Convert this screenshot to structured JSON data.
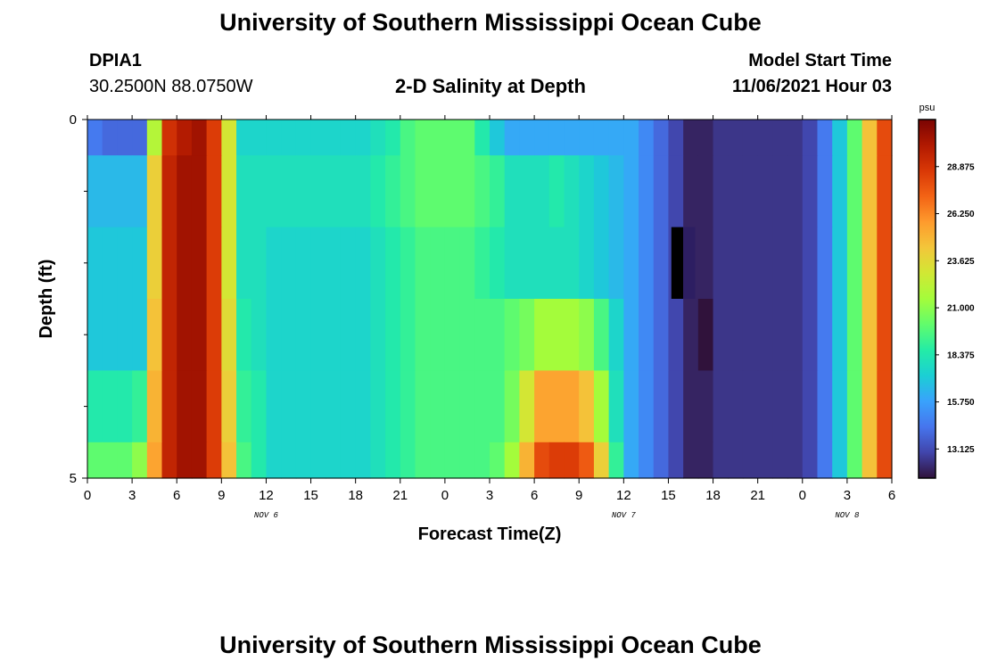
{
  "page": {
    "title": "University of Southern Mississippi Ocean Cube",
    "title_repeat": "University of Southern Mississippi Ocean Cube",
    "station_id": "DPIA1",
    "station_coords": "30.2500N  88.0750W",
    "subtitle": "2-D Salinity at Depth",
    "model_start_label": "Model Start Time",
    "model_start_value": "11/06/2021 Hour 03"
  },
  "chart_data": {
    "type": "heatmap",
    "title": "2-D Salinity at Depth",
    "xlabel": "Forecast Time(Z)",
    "ylabel": "Depth (ft)",
    "x_tick_labels": [
      "0",
      "3",
      "6",
      "9",
      "12",
      "15",
      "18",
      "21",
      "0",
      "3",
      "6",
      "9",
      "12",
      "15",
      "18",
      "21",
      "0",
      "3",
      "6"
    ],
    "date_labels": [
      {
        "text": "NOV 6",
        "tick_index": 4
      },
      {
        "text": "NOV 7",
        "tick_index": 12
      },
      {
        "text": "NOV 8",
        "tick_index": 17
      }
    ],
    "x_range_hours": [
      0,
      54
    ],
    "y_tick_labels": [
      "0",
      "5"
    ],
    "ylim": [
      0,
      5
    ],
    "colorbar": {
      "unit": "psu",
      "min": 11.5,
      "max": 31.5,
      "tick_values": [
        13.125,
        15.75,
        18.375,
        21.0,
        23.625,
        26.25,
        28.875
      ],
      "tick_labels": [
        "13.125",
        "15.750",
        "18.375",
        "21.000",
        "23.625",
        "26.250",
        "28.875"
      ]
    },
    "color_scale": [
      "#30123b",
      "#4145ab",
      "#4675ed",
      "#39a2fc",
      "#1bcfd4",
      "#24eca6",
      "#61fc6c",
      "#a4fc3b",
      "#d1e834",
      "#f3c63a",
      "#fe9b2d",
      "#f36315",
      "#d93806",
      "#b11901",
      "#7a0402"
    ],
    "time_hours": [
      0,
      1,
      2,
      3,
      4,
      5,
      6,
      7,
      8,
      9,
      10,
      11,
      12,
      13,
      14,
      15,
      16,
      17,
      18,
      19,
      20,
      21,
      22,
      23,
      24,
      25,
      26,
      27,
      28,
      29,
      30,
      31,
      32,
      33,
      34,
      35,
      36,
      37,
      38,
      39,
      40,
      41,
      42,
      43,
      44,
      45,
      46,
      47,
      48,
      49,
      50,
      51,
      52,
      53
    ],
    "depth_bins_ft": [
      "0.0-0.5",
      "0.5-1.5",
      "1.5-2.5",
      "2.5-3.5",
      "3.5-4.5",
      "4.5-5.0"
    ],
    "salinity_psu": [
      [
        14.5,
        14.0,
        14.0,
        14.0,
        22.0,
        29.0,
        30.0,
        30.5,
        28.5,
        23.0,
        17.5,
        17.5,
        17.5,
        17.5,
        17.5,
        17.5,
        17.5,
        17.5,
        17.5,
        18.0,
        18.5,
        19.5,
        20.0,
        20.0,
        20.0,
        20.0,
        18.5,
        17.0,
        16.0,
        16.0,
        16.0,
        16.0,
        16.0,
        16.0,
        16.0,
        16.0,
        16.0,
        15.0,
        14.0,
        13.0,
        12.0,
        12.0,
        12.5,
        12.5,
        12.5,
        12.5,
        12.5,
        12.5,
        13.0,
        14.5,
        17.0,
        20.0,
        24.5,
        28.0
      ],
      [
        16.5,
        16.5,
        16.5,
        16.5,
        24.0,
        29.5,
        30.5,
        30.5,
        28.5,
        23.0,
        18.0,
        18.0,
        18.0,
        18.0,
        18.0,
        18.0,
        18.0,
        18.0,
        18.0,
        18.5,
        19.0,
        19.5,
        20.0,
        20.0,
        20.0,
        20.0,
        19.5,
        19.0,
        18.0,
        18.0,
        18.0,
        18.5,
        18.0,
        17.5,
        17.0,
        16.5,
        16.0,
        15.0,
        14.0,
        13.0,
        12.0,
        12.0,
        12.5,
        12.5,
        12.5,
        12.5,
        12.5,
        12.5,
        13.0,
        14.5,
        17.0,
        20.0,
        24.5,
        28.0
      ],
      [
        17.0,
        17.0,
        17.0,
        17.0,
        24.0,
        29.5,
        30.5,
        30.5,
        28.5,
        23.0,
        18.0,
        18.0,
        17.5,
        17.5,
        17.5,
        17.5,
        17.5,
        17.5,
        17.5,
        18.0,
        18.5,
        19.0,
        19.5,
        19.5,
        19.5,
        19.5,
        19.0,
        18.5,
        18.0,
        18.0,
        18.0,
        18.0,
        18.0,
        17.5,
        17.0,
        16.5,
        16.0,
        15.0,
        14.0,
        13.0,
        12.0,
        12.0,
        12.5,
        12.5,
        12.5,
        12.5,
        12.5,
        12.5,
        13.0,
        14.5,
        17.0,
        20.0,
        24.5,
        28.0
      ],
      [
        17.0,
        17.0,
        17.0,
        17.0,
        24.5,
        29.5,
        30.5,
        30.5,
        28.5,
        23.5,
        18.5,
        18.0,
        17.5,
        17.5,
        17.5,
        17.5,
        17.5,
        17.5,
        17.5,
        18.0,
        18.5,
        19.0,
        19.5,
        19.5,
        19.5,
        19.5,
        19.5,
        19.5,
        20.0,
        20.5,
        21.5,
        21.5,
        21.5,
        21.0,
        19.5,
        17.5,
        16.0,
        15.0,
        14.0,
        13.0,
        12.0,
        11.5,
        12.5,
        12.5,
        12.5,
        12.5,
        12.5,
        12.5,
        13.0,
        14.5,
        17.0,
        20.0,
        24.5,
        28.0
      ],
      [
        18.5,
        18.5,
        18.5,
        19.0,
        25.0,
        29.5,
        30.5,
        30.5,
        28.5,
        24.0,
        19.0,
        18.5,
        17.5,
        17.5,
        17.5,
        17.5,
        17.5,
        17.5,
        17.5,
        18.0,
        18.5,
        19.0,
        19.5,
        19.5,
        19.5,
        19.5,
        19.5,
        19.5,
        20.5,
        23.0,
        25.5,
        25.5,
        25.5,
        24.5,
        21.5,
        18.0,
        16.0,
        15.0,
        14.0,
        13.0,
        12.0,
        12.0,
        12.5,
        12.5,
        12.5,
        12.5,
        12.5,
        12.5,
        13.0,
        14.5,
        17.0,
        20.0,
        24.5,
        28.0
      ],
      [
        20.0,
        20.0,
        20.0,
        21.0,
        25.5,
        29.5,
        30.5,
        30.5,
        28.5,
        24.5,
        19.5,
        18.5,
        17.5,
        17.5,
        17.5,
        17.5,
        17.5,
        17.5,
        17.5,
        18.0,
        18.5,
        19.0,
        19.5,
        19.5,
        19.5,
        19.5,
        19.5,
        20.0,
        21.5,
        25.0,
        28.0,
        28.5,
        28.5,
        27.5,
        24.0,
        19.0,
        16.0,
        15.0,
        14.0,
        13.0,
        12.0,
        12.0,
        12.5,
        12.5,
        12.5,
        12.5,
        12.5,
        12.5,
        13.0,
        14.5,
        17.0,
        20.0,
        24.5,
        28.0
      ]
    ]
  }
}
